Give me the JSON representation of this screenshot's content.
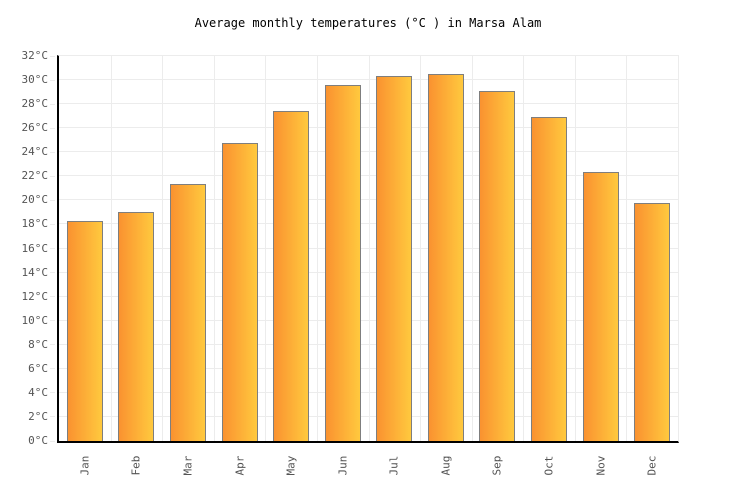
{
  "title": "Average monthly temperatures (°C ) in Marsa Alam",
  "chart_data": {
    "type": "bar",
    "title": "Average monthly temperatures (°C ) in Marsa Alam",
    "categories": [
      "Jan",
      "Feb",
      "Mar",
      "Apr",
      "May",
      "Jun",
      "Jul",
      "Aug",
      "Sep",
      "Oct",
      "Nov",
      "Dec"
    ],
    "values": [
      18.3,
      19.0,
      21.4,
      24.8,
      27.4,
      29.6,
      30.3,
      30.5,
      29.1,
      26.9,
      22.4,
      19.8
    ],
    "xlabel": "",
    "ylabel": "",
    "ylim": [
      0,
      32
    ],
    "ytick_step": 2,
    "ytick_suffix": "°C",
    "grid": true,
    "legend_position": "none"
  },
  "colors": {
    "background": "#ffffff",
    "bar_gradient_left": "#fa9230",
    "bar_gradient_right": "#ffc93e",
    "bar_border": "#7e7e7e",
    "grid": "#ececec",
    "axis": "#000000",
    "tick_label": "#545454",
    "title": "#000000"
  }
}
